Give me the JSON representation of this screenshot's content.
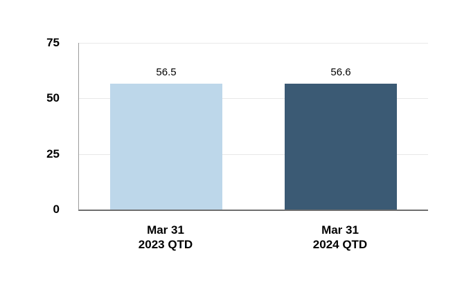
{
  "chart_data": {
    "type": "bar",
    "title": "",
    "xlabel": "",
    "ylabel": "",
    "categories": [
      [
        "Mar 31",
        "2023 QTD"
      ],
      [
        "Mar 31",
        "2024 QTD"
      ]
    ],
    "values": [
      56.5,
      56.6
    ],
    "value_labels": [
      "56.5",
      "56.6"
    ],
    "bar_colors": [
      "#BDD7EA",
      "#3B5A74"
    ],
    "yticks": [
      0,
      25,
      50,
      75
    ],
    "ylim": [
      0,
      75
    ],
    "grid": true,
    "legend_position": "none"
  },
  "colors": {
    "background": "#FFFFFF",
    "gridline": "#E8E8E8",
    "y_axis_line": "#9B9B9B",
    "x_axis_line": "#6E6E6E",
    "text": "#000000"
  }
}
